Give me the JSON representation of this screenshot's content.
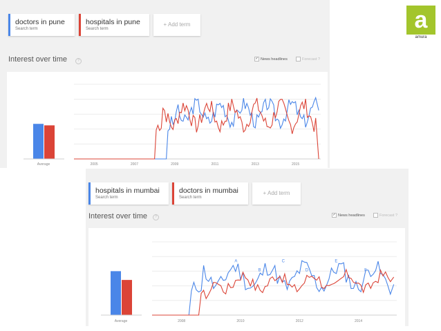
{
  "logo": {
    "brand": "amura",
    "mark": "a",
    "color": "#a3c52c"
  },
  "colors": {
    "blue": "#4a86e8",
    "red": "#db4437"
  },
  "panels": [
    {
      "terms": [
        {
          "name": "doctors in pune",
          "sub": "Search term",
          "color": "blue"
        },
        {
          "name": "hospitals in pune",
          "sub": "Search term",
          "color": "red"
        }
      ],
      "add_term": "+ Add term",
      "title": "Interest over time",
      "info": "?",
      "news": "News headlines",
      "forecast": "Forecast",
      "forecast_info": "?"
    },
    {
      "terms": [
        {
          "name": "hospitals in mumbai",
          "sub": "Search term",
          "color": "blue"
        },
        {
          "name": "doctors in mumbai",
          "sub": "Search term",
          "color": "red"
        }
      ],
      "add_term": "+ Add term",
      "title": "Interest over time",
      "info": "?",
      "news": "News headlines",
      "forecast": "Forecast",
      "forecast_info": "?"
    }
  ],
  "chart_data": [
    {
      "type": "line",
      "average_label": "Average",
      "averages": [
        47,
        45
      ],
      "xticks": [
        "2005",
        "2007",
        "2009",
        "2011",
        "2013",
        "2015"
      ],
      "xdomain": [
        2004.0,
        2016.25
      ],
      "ylim": [
        0,
        100
      ],
      "grid": true,
      "series": [
        {
          "color": "blue",
          "start": 2008.6,
          "base": 62,
          "amp": 12,
          "noise": 10,
          "end_value": 65,
          "seed": 3
        },
        {
          "color": "red",
          "start": 2008.0,
          "base": 58,
          "amp": 14,
          "noise": 11,
          "end_value": 0,
          "seed": 7
        }
      ]
    },
    {
      "type": "line",
      "average_label": "Average",
      "averages": [
        60,
        48
      ],
      "xticks": [
        "2008",
        "2010",
        "2012",
        "2014"
      ],
      "xdomain": [
        2007.0,
        2015.3
      ],
      "ylim": [
        0,
        100
      ],
      "grid": true,
      "annotations": [
        "A",
        "B",
        "C",
        "D",
        "E",
        "F"
      ],
      "series": [
        {
          "color": "blue",
          "start": 2008.3,
          "base": 52,
          "amp": 14,
          "noise": 12,
          "end_value": 42,
          "seed": 11
        },
        {
          "color": "red",
          "start": 2008.6,
          "base": 45,
          "amp": 10,
          "noise": 8,
          "end_value": 52,
          "seed": 17
        }
      ]
    }
  ]
}
